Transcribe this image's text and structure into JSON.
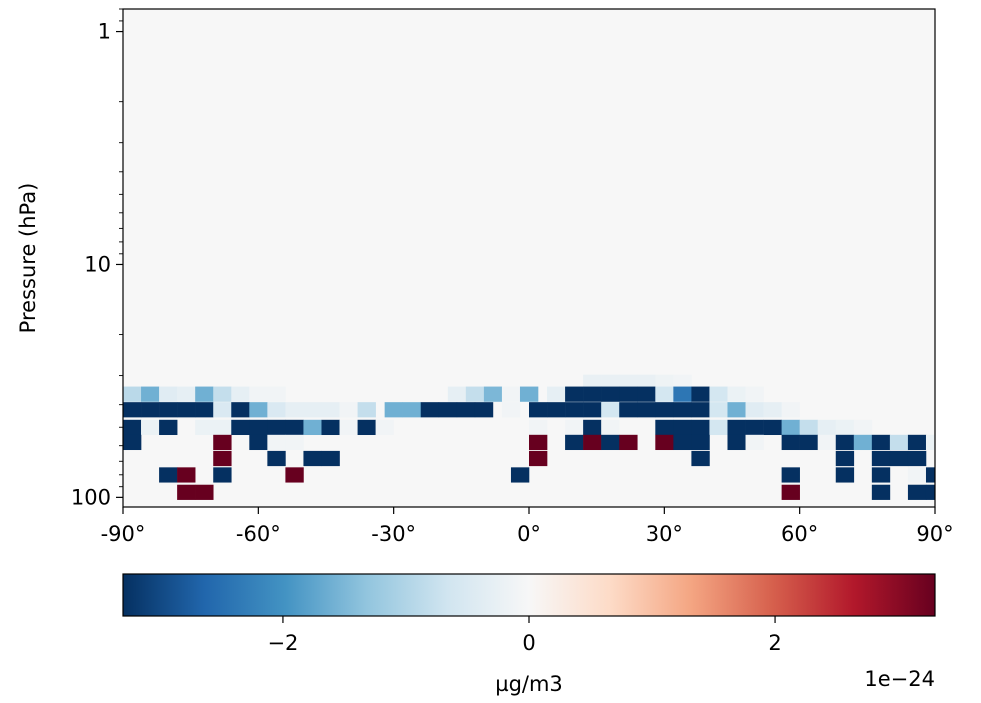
{
  "chart_data": {
    "type": "heatmap",
    "title": "",
    "xlabel": "",
    "ylabel": "Pressure (hPa)",
    "x_scale": "linear",
    "y_scale": "log",
    "y_inverted": true,
    "xlim": [
      -90,
      90
    ],
    "ylim": [
      110,
      0.8
    ],
    "x_ticks": [
      -90,
      -60,
      -30,
      0,
      30,
      60,
      90
    ],
    "x_tick_labels": [
      "-90°",
      "-60°",
      "-30°",
      "0°",
      "30°",
      "60°",
      "90°"
    ],
    "y_ticks": [
      1,
      10,
      100
    ],
    "y_tick_labels": [
      "1",
      "10",
      "100"
    ],
    "colormap": "RdBu_r",
    "grid": false,
    "background_value": 0,
    "colorbar": {
      "orientation": "horizontal",
      "label": "µg/m3",
      "offset_text": "1e−24",
      "range": [
        -3.3,
        3.3
      ],
      "ticks": [
        -2,
        0,
        2
      ],
      "tick_labels": [
        "−2",
        "0",
        "2"
      ],
      "colors": [
        "#053061",
        "#2166ac",
        "#4393c3",
        "#92c5de",
        "#d1e5f0",
        "#f7f7f7",
        "#fddbc7",
        "#f4a582",
        "#d6604d",
        "#b2182b",
        "#67001f"
      ]
    },
    "lat_step": 4,
    "cells_note_units": "value in units of 1e-24 µg/m3",
    "rows": [
      {
        "p": 32,
        "cells": [
          [
            14,
            -0.25
          ],
          [
            18,
            -0.25
          ],
          [
            22,
            -0.25
          ],
          [
            26,
            -0.25
          ],
          [
            30,
            -0.15
          ],
          [
            34,
            -0.1
          ]
        ]
      },
      {
        "p": 36,
        "cells": [
          [
            -88,
            -0.9
          ],
          [
            -84,
            -1.6
          ],
          [
            -80,
            -0.4
          ],
          [
            -76,
            -0.3
          ],
          [
            -72,
            -1.6
          ],
          [
            -68,
            -0.8
          ],
          [
            -64,
            -0.3
          ],
          [
            -60,
            -0.1
          ],
          [
            -56,
            -0.1
          ],
          [
            -16,
            -0.3
          ],
          [
            -12,
            -0.8
          ],
          [
            -8,
            -1.5
          ],
          [
            -4,
            -0.1
          ],
          [
            0,
            -1.6
          ],
          [
            6,
            -0.3
          ],
          [
            10,
            -3.3
          ],
          [
            14,
            -3.3
          ],
          [
            18,
            -3.3
          ],
          [
            22,
            -3.3
          ],
          [
            26,
            -3.3
          ],
          [
            30,
            -0.6
          ],
          [
            34,
            -2.4
          ],
          [
            38,
            -3.3
          ],
          [
            42,
            -0.6
          ],
          [
            46,
            -0.2
          ],
          [
            50,
            -0.1
          ]
        ]
      },
      {
        "p": 42,
        "cells": [
          [
            -88,
            -3.3
          ],
          [
            -84,
            -3.3
          ],
          [
            -80,
            -3.3
          ],
          [
            -76,
            -3.3
          ],
          [
            -72,
            -3.3
          ],
          [
            -68,
            -0.5
          ],
          [
            -64,
            -3.3
          ],
          [
            -60,
            -1.6
          ],
          [
            -56,
            -0.5
          ],
          [
            -52,
            -0.3
          ],
          [
            -48,
            -0.3
          ],
          [
            -44,
            -0.3
          ],
          [
            -40,
            -0.1
          ],
          [
            -36,
            -0.8
          ],
          [
            -30,
            -1.6
          ],
          [
            -26,
            -1.6
          ],
          [
            -22,
            -3.3
          ],
          [
            -18,
            -3.3
          ],
          [
            -14,
            -3.3
          ],
          [
            -10,
            -3.3
          ],
          [
            -4,
            -0.1
          ],
          [
            2,
            -3.3
          ],
          [
            6,
            -3.3
          ],
          [
            10,
            -3.3
          ],
          [
            14,
            -3.3
          ],
          [
            18,
            -0.6
          ],
          [
            22,
            -3.3
          ],
          [
            26,
            -3.3
          ],
          [
            30,
            -3.3
          ],
          [
            34,
            -3.3
          ],
          [
            38,
            -3.3
          ],
          [
            42,
            -0.6
          ],
          [
            46,
            -1.6
          ],
          [
            50,
            -0.4
          ],
          [
            54,
            -0.3
          ],
          [
            58,
            -0.1
          ]
        ]
      },
      {
        "p": 50,
        "cells": [
          [
            -88,
            -3.3
          ],
          [
            -84,
            -0.2
          ],
          [
            -80,
            -3.3
          ],
          [
            -72,
            -0.2
          ],
          [
            -68,
            -0.2
          ],
          [
            -64,
            -3.3
          ],
          [
            -60,
            -3.3
          ],
          [
            -56,
            -3.3
          ],
          [
            -52,
            -3.3
          ],
          [
            -48,
            -1.6
          ],
          [
            -44,
            -3.3
          ],
          [
            -40,
            -0.1
          ],
          [
            -36,
            -3.3
          ],
          [
            -32,
            -0.1
          ],
          [
            2,
            -0.1
          ],
          [
            10,
            -0.1
          ],
          [
            14,
            -3.3
          ],
          [
            18,
            -0.1
          ],
          [
            30,
            -3.3
          ],
          [
            34,
            -3.3
          ],
          [
            38,
            -3.3
          ],
          [
            42,
            -0.6
          ],
          [
            46,
            -3.3
          ],
          [
            50,
            -3.3
          ],
          [
            54,
            -3.3
          ],
          [
            58,
            -1.6
          ],
          [
            62,
            -0.8
          ],
          [
            66,
            -0.3
          ],
          [
            70,
            -0.2
          ],
          [
            74,
            -0.1
          ]
        ]
      },
      {
        "p": 58,
        "cells": [
          [
            -88,
            -3.3
          ],
          [
            -68,
            3.3
          ],
          [
            -60,
            -3.3
          ],
          [
            -56,
            -0.1
          ],
          [
            -52,
            -0.1
          ],
          [
            2,
            3.3
          ],
          [
            10,
            -3.3
          ],
          [
            14,
            3.3
          ],
          [
            18,
            -3.3
          ],
          [
            22,
            3.3
          ],
          [
            30,
            3.3
          ],
          [
            34,
            -3.3
          ],
          [
            38,
            -3.3
          ],
          [
            46,
            -3.3
          ],
          [
            50,
            -0.1
          ],
          [
            58,
            -3.3
          ],
          [
            62,
            -3.3
          ],
          [
            66,
            -0.1
          ],
          [
            70,
            -3.3
          ],
          [
            74,
            -1.6
          ],
          [
            78,
            -3.3
          ],
          [
            82,
            -0.8
          ],
          [
            86,
            -3.3
          ],
          [
            90,
            -0.2
          ]
        ]
      },
      {
        "p": 68,
        "cells": [
          [
            -68,
            3.3
          ],
          [
            -56,
            -3.3
          ],
          [
            -48,
            -3.3
          ],
          [
            -44,
            -3.3
          ],
          [
            2,
            3.3
          ],
          [
            38,
            -3.3
          ],
          [
            70,
            -3.3
          ],
          [
            78,
            -3.3
          ],
          [
            82,
            -3.3
          ],
          [
            86,
            -3.3
          ]
        ]
      },
      {
        "p": 80,
        "cells": [
          [
            -80,
            -3.3
          ],
          [
            -76,
            3.3
          ],
          [
            -68,
            -3.3
          ],
          [
            -52,
            3.3
          ],
          [
            -2,
            -3.3
          ],
          [
            58,
            -3.3
          ],
          [
            70,
            -3.3
          ],
          [
            78,
            -3.3
          ],
          [
            86,
            -0.1
          ],
          [
            90,
            -3.3
          ]
        ]
      },
      {
        "p": 95,
        "cells": [
          [
            -76,
            3.3
          ],
          [
            -72,
            3.3
          ],
          [
            58,
            3.3
          ],
          [
            78,
            -3.3
          ],
          [
            86,
            -3.3
          ],
          [
            90,
            -3.3
          ]
        ]
      }
    ]
  }
}
